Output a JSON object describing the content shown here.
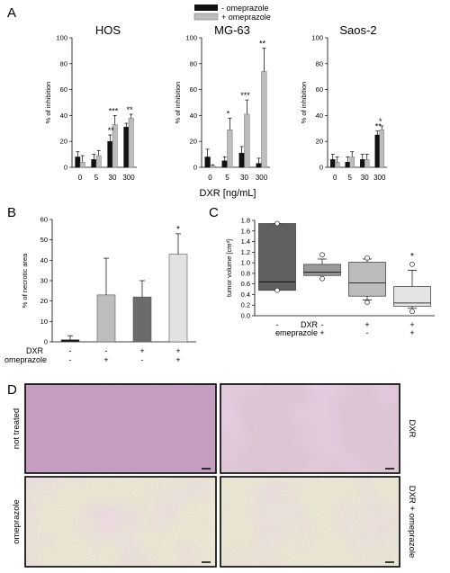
{
  "panel_letters": {
    "a": "A",
    "b": "B",
    "c": "C",
    "d": "D"
  },
  "colors": {
    "no_omeprazole": "#111111",
    "with_omeprazole": "#bdbdbd",
    "tissue_pink": "#c9a0c4",
    "tissue_pale": "#e6e2cf"
  },
  "chart_data": [
    {
      "id": "A",
      "type": "bar",
      "legend": [
        "- omeprazole",
        "+ omeprazole"
      ],
      "legend_position": "top-center",
      "xlabel": "DXR [ng/mL]",
      "ylabel": "% of inhibition",
      "ylim": [
        0,
        100
      ],
      "yticks": [
        "0",
        "20",
        "40",
        "60",
        "80",
        "100"
      ],
      "categories": [
        "0",
        "5",
        "30",
        "300"
      ],
      "subplots": [
        {
          "title": "HOS",
          "series": [
            {
              "values": [
                8,
                6,
                20,
                31
              ],
              "errors": [
                4,
                4,
                5,
                3
              ]
            },
            {
              "values": [
                4,
                9,
                33,
                38
              ],
              "errors": [
                5,
                4,
                7,
                3
              ]
            }
          ],
          "stars": [
            "",
            "",
            "***",
            "**"
          ],
          "stars_mid": [
            "",
            "",
            "**",
            ""
          ]
        },
        {
          "title": "MG-63",
          "series": [
            {
              "values": [
                8,
                5,
                11,
                3
              ],
              "errors": [
                6,
                3,
                5,
                4
              ]
            },
            {
              "values": [
                1,
                29,
                41,
                74
              ],
              "errors": [
                1,
                9,
                11,
                18
              ]
            }
          ],
          "stars": [
            "",
            "*",
            "***",
            "**"
          ]
        },
        {
          "title": "Saos-2",
          "series": [
            {
              "values": [
                6,
                4,
                6,
                25
              ],
              "errors": [
                4,
                4,
                4,
                3
              ]
            },
            {
              "values": [
                4,
                8,
                6,
                29
              ],
              "errors": [
                4,
                4,
                4,
                3
              ]
            }
          ],
          "stars": [
            "",
            "",
            "",
            "*"
          ],
          "stars_mid": [
            "",
            "",
            "",
            "**"
          ]
        }
      ]
    },
    {
      "id": "B",
      "type": "bar",
      "ylabel": "% of necrotic area",
      "ylim": [
        0,
        60
      ],
      "yticks": [
        "0",
        "10",
        "20",
        "30",
        "40",
        "50",
        "60"
      ],
      "condition_labels": [
        "DXR",
        "omeprazole"
      ],
      "conditions": [
        [
          "-",
          "-"
        ],
        [
          "-",
          "+"
        ],
        [
          "+",
          "-"
        ],
        [
          "+",
          "+"
        ]
      ],
      "values": [
        1,
        23,
        22,
        43
      ],
      "errors": [
        2,
        18,
        8,
        10
      ],
      "bar_colors": [
        "#111111",
        "#bdbdbd",
        "#6b6b6b",
        "#e2e2e2"
      ],
      "stars": [
        "",
        "",
        "",
        "*"
      ]
    },
    {
      "id": "C",
      "type": "box",
      "ylabel": "tumor volume [cm³]",
      "ylim": [
        0,
        1.8
      ],
      "yticks": [
        "0.0",
        "0.2",
        "0.4",
        "0.6",
        "0.8",
        "1.0",
        "1.2",
        "1.4",
        "1.6",
        "1.8"
      ],
      "condition_labels": [
        "DXR",
        "omeprazole"
      ],
      "conditions": [
        [
          "-",
          "-"
        ],
        [
          "-",
          "+"
        ],
        [
          "+",
          "-"
        ],
        [
          "+",
          "+"
        ]
      ],
      "boxes": [
        {
          "q1": 0.48,
          "median": 0.64,
          "q3": 1.74,
          "wlo": 0.48,
          "whi": 1.74,
          "outliers": [
            0.48,
            1.74
          ]
        },
        {
          "q1": 0.76,
          "median": 0.82,
          "q3": 0.97,
          "wlo": 0.76,
          "whi": 1.07,
          "outliers": [
            0.7,
            1.15
          ]
        },
        {
          "q1": 0.37,
          "median": 0.62,
          "q3": 1.01,
          "wlo": 0.3,
          "whi": 1.07,
          "outliers": [
            0.25,
            1.09
          ]
        },
        {
          "q1": 0.18,
          "median": 0.24,
          "q3": 0.55,
          "wlo": 0.14,
          "whi": 0.86,
          "outliers": [
            0.08,
            0.97
          ]
        }
      ],
      "box_colors": [
        "#606060",
        "#9a9a9a",
        "#bcbcbc",
        "#e4e4e4"
      ],
      "stars": [
        "",
        "",
        "",
        "*"
      ]
    }
  ],
  "panel_d": {
    "images": [
      {
        "label": "not treated",
        "label_side": "left",
        "tone": "dense"
      },
      {
        "label": "DXR",
        "label_side": "right",
        "tone": "mixed"
      },
      {
        "label": "omeprazole",
        "label_side": "left",
        "tone": "pale"
      },
      {
        "label": "DXR + omeprazole",
        "label_side": "right",
        "tone": "pale"
      }
    ]
  }
}
